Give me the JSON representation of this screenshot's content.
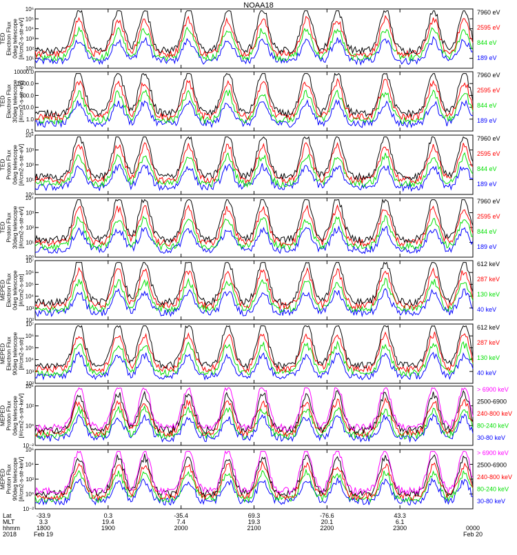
{
  "title": "NOAA18",
  "chart_data": {
    "type": "line",
    "x_start": "1800",
    "x_end": "0000",
    "panels": [
      {
        "ylabel": [
          "TED",
          "Electron Flux",
          "0deg telescope",
          "[#/cm2-s-str-eV]"
        ],
        "log": true,
        "yticks": [
          "10⁰",
          "10¹",
          "10²",
          "10³",
          "10⁴",
          "10⁵",
          "10⁶"
        ],
        "series": [
          {
            "name": "7960 eV",
            "color": "#000000"
          },
          {
            "name": "2595 eV",
            "color": "#ff0000"
          },
          {
            "name": "844 eV",
            "color": "#00e000"
          },
          {
            "name": "189 eV",
            "color": "#0000ff"
          }
        ]
      },
      {
        "ylabel": [
          "TED",
          "Electron Flux",
          "30deg telescope",
          "[#/cm2-s-str-eV]"
        ],
        "log": true,
        "yticks": [
          "0.1",
          "1.0",
          "10.0",
          "100.0",
          "1000.0",
          "10000.0"
        ],
        "series": [
          {
            "name": "7960 eV",
            "color": "#000000"
          },
          {
            "name": "2595 eV",
            "color": "#ff0000"
          },
          {
            "name": "844 eV",
            "color": "#00e000"
          },
          {
            "name": "189 eV",
            "color": "#0000ff"
          }
        ]
      },
      {
        "ylabel": [
          "TED",
          "Proton Flux",
          "0deg telescope",
          "[#/cm2-s-str-eV]"
        ],
        "log": true,
        "yticks": [
          "10⁰",
          "10¹",
          "10²",
          "10³",
          "10⁴"
        ],
        "series": [
          {
            "name": "7960 eV",
            "color": "#000000"
          },
          {
            "name": "2595 eV",
            "color": "#ff0000"
          },
          {
            "name": "844 eV",
            "color": "#00e000"
          },
          {
            "name": "189 eV",
            "color": "#0000ff"
          }
        ]
      },
      {
        "ylabel": [
          "TED",
          "Proton Flux",
          "30deg telescope",
          "[#/cm2-s-str-eV]"
        ],
        "log": true,
        "yticks": [
          "10⁰",
          "10¹",
          "10²",
          "10³",
          "10⁴"
        ],
        "series": [
          {
            "name": "7960 eV",
            "color": "#000000"
          },
          {
            "name": "2595 eV",
            "color": "#ff0000"
          },
          {
            "name": "844 eV",
            "color": "#00e000"
          },
          {
            "name": "189 eV",
            "color": "#0000ff"
          }
        ]
      },
      {
        "ylabel": [
          "MEPED",
          "Electron Flux",
          "0deg telescope",
          "[#/cm2-s-str]"
        ],
        "log": true,
        "yticks": [
          "10²",
          "10³",
          "10⁴",
          "10⁵",
          "10⁶",
          "10⁷"
        ],
        "series": [
          {
            "name": "612 keV",
            "color": "#000000"
          },
          {
            "name": "287 keV",
            "color": "#ff0000"
          },
          {
            "name": "130 keV",
            "color": "#00e000"
          },
          {
            "name": "40 keV",
            "color": "#0000ff"
          }
        ]
      },
      {
        "ylabel": [
          "MEPED",
          "Electron Flux",
          "90deg telescope",
          "[#/cm2-s-str]"
        ],
        "log": true,
        "yticks": [
          "10²",
          "10³",
          "10⁴",
          "10⁵",
          "10⁶",
          "10⁷"
        ],
        "series": [
          {
            "name": "612 keV",
            "color": "#000000"
          },
          {
            "name": "287 keV",
            "color": "#ff0000"
          },
          {
            "name": "130 keV",
            "color": "#00e000"
          },
          {
            "name": "40 keV",
            "color": "#0000ff"
          }
        ]
      },
      {
        "ylabel": [
          "MEPED",
          "Proton Flux",
          "0deg telescope",
          "[#/cm2-s-str-keV]"
        ],
        "log": true,
        "yticks": [
          "10⁻²",
          "10⁰",
          "10²",
          "10⁴"
        ],
        "series": [
          {
            "name": "> 6900 keV",
            "color": "#ff00ff"
          },
          {
            "name": "2500-6900",
            "color": "#000000"
          },
          {
            "name": "240-800 keV",
            "color": "#ff0000"
          },
          {
            "name": "80-240 keV",
            "color": "#00e000"
          },
          {
            "name": "30-80 keV",
            "color": "#0000ff"
          }
        ]
      },
      {
        "ylabel": [
          "MEPED",
          "Proton Flux",
          "90deg telescope",
          "[#/cm2-s-str-keV]"
        ],
        "log": true,
        "yticks": [
          "10⁻²",
          "10⁰",
          "10²",
          "10⁴",
          "10⁶"
        ],
        "series": [
          {
            "name": "> 6900 keV",
            "color": "#ff00ff"
          },
          {
            "name": "2500-6900",
            "color": "#000000"
          },
          {
            "name": "240-800 keV",
            "color": "#ff0000"
          },
          {
            "name": "80-240 keV",
            "color": "#00e000"
          },
          {
            "name": "30-80 keV",
            "color": "#0000ff"
          }
        ]
      }
    ],
    "x_axis": {
      "row_labels": [
        "Lat",
        "MLT",
        "hhmm",
        "2018"
      ],
      "columns": [
        {
          "lat": "-33.9",
          "mlt": "3.3",
          "hhmm": "1800",
          "date": "Feb 19"
        },
        {
          "lat": "0.3",
          "mlt": "19.4",
          "hhmm": "1900",
          "date": ""
        },
        {
          "lat": "-35.4",
          "mlt": "7.4",
          "hhmm": "2000",
          "date": ""
        },
        {
          "lat": "69.3",
          "mlt": "19.3",
          "hhmm": "2100",
          "date": ""
        },
        {
          "lat": "-76.6",
          "mlt": "20.1",
          "hhmm": "2200",
          "date": ""
        },
        {
          "lat": "43.3",
          "mlt": "6.1",
          "hhmm": "2300",
          "date": ""
        },
        {
          "lat": "",
          "mlt": "",
          "hhmm": "0000",
          "date": "Feb 20"
        }
      ]
    }
  }
}
